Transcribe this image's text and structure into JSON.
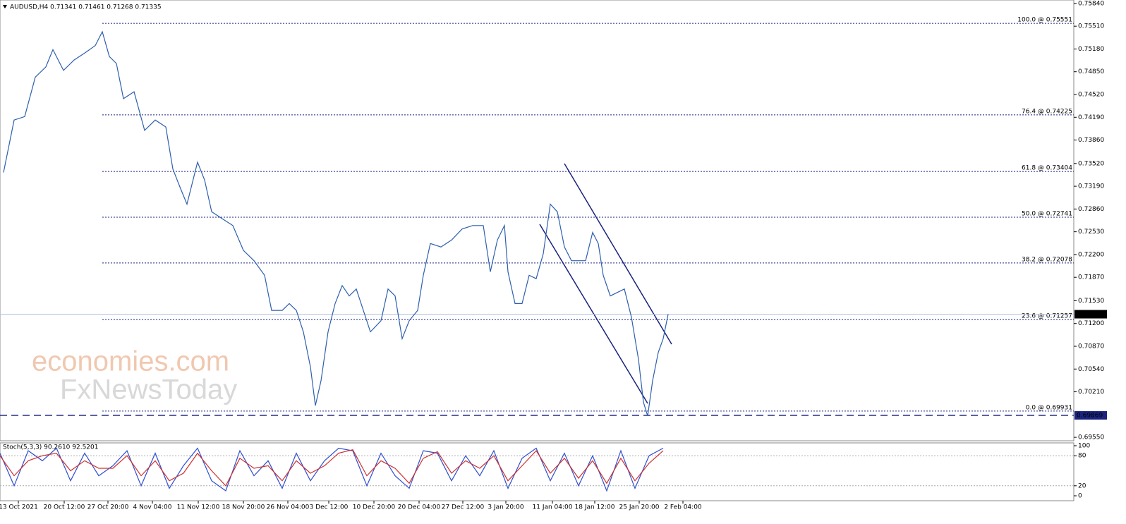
{
  "header": "AUDUSD,H4  0.71341 0.71461 0.71268 0.71335",
  "watermark": [
    "economies.com",
    "FxNewsToday"
  ],
  "chart_data": [
    {
      "type": "line",
      "xlim": [
        0,
        304.4
      ],
      "xticks": [
        {
          "value": 5.2,
          "label": "13 Oct 2021"
        },
        {
          "value": 18.2,
          "label": "20 Oct 12:00"
        },
        {
          "value": 30.6,
          "label": "27 Oct 20:00"
        },
        {
          "value": 43.2,
          "label": "4 Nov 04:00"
        },
        {
          "value": 56.2,
          "label": "11 Nov 12:00"
        },
        {
          "value": 69,
          "label": "18 Nov 20:00"
        },
        {
          "value": 81.6,
          "label": "26 Nov 04:00"
        },
        {
          "value": 93.2,
          "label": "3 Dec 12:00"
        },
        {
          "value": 106,
          "label": "10 Dec 20:00"
        },
        {
          "value": 118.8,
          "label": "20 Dec 04:00"
        },
        {
          "value": 131.2,
          "label": "27 Dec 12:00"
        },
        {
          "value": 143.4,
          "label": "3 Jan 20:00"
        },
        {
          "value": 156.6,
          "label": "11 Jan 04:00"
        },
        {
          "value": 168.6,
          "label": "18 Jan 12:00"
        },
        {
          "value": 181.2,
          "label": "25 Jan 20:00"
        },
        {
          "value": 193.6,
          "label": "2 Feb 04:00"
        }
      ],
      "ylim": [
        0.695,
        0.7589
      ],
      "yticks": [
        {
          "value": 0.7584,
          "label": "0.75840"
        },
        {
          "value": 0.7551,
          "label": "0.75510"
        },
        {
          "value": 0.7518,
          "label": "0.75180"
        },
        {
          "value": 0.7485,
          "label": "0.74850"
        },
        {
          "value": 0.7452,
          "label": "0.74520"
        },
        {
          "value": 0.7419,
          "label": "0.74190"
        },
        {
          "value": 0.7386,
          "label": "0.73860"
        },
        {
          "value": 0.7352,
          "label": "0.73520"
        },
        {
          "value": 0.7319,
          "label": "0.73190"
        },
        {
          "value": 0.7286,
          "label": "0.72860"
        },
        {
          "value": 0.7253,
          "label": "0.72530"
        },
        {
          "value": 0.722,
          "label": "0.72200"
        },
        {
          "value": 0.7187,
          "label": "0.71870"
        },
        {
          "value": 0.7153,
          "label": "0.71530"
        },
        {
          "value": 0.712,
          "label": "0.71200"
        },
        {
          "value": 0.7087,
          "label": "0.70870"
        },
        {
          "value": 0.7054,
          "label": "0.70540"
        },
        {
          "value": 0.7021,
          "label": "0.70210"
        },
        {
          "value": 0.6955,
          "label": "0.69550"
        }
      ],
      "levels": [
        {
          "value": 0.75551,
          "label": "100.0 @ 0.75551"
        },
        {
          "value": 0.74225,
          "label": "76.4 @ 0.74225"
        },
        {
          "value": 0.73404,
          "label": "61.8 @ 0.73404"
        },
        {
          "value": 0.72741,
          "label": "50.0 @ 0.72741"
        },
        {
          "value": 0.72078,
          "label": "38.2 @ 0.72078"
        },
        {
          "value": 0.71257,
          "label": "23.6 @ 0.71257"
        },
        {
          "value": 0.69931,
          "label": "0.0 @ 0.69931"
        }
      ],
      "price_labels": [
        {
          "value": 0.71335,
          "label": "0.71335"
        },
        {
          "value": 0.69869,
          "label": "0.69869"
        }
      ],
      "series": [
        {
          "color": "#2e5fae",
          "x": [
            1,
            4,
            7,
            10,
            13,
            15,
            18,
            21,
            24,
            27,
            29,
            31,
            33,
            35,
            38,
            41,
            44,
            47,
            49,
            51,
            53,
            56,
            58,
            60,
            63,
            66,
            69,
            72,
            75,
            77,
            80,
            82,
            84,
            86,
            88,
            89.4,
            91,
            93,
            95,
            97,
            99,
            101,
            103,
            105,
            108,
            110,
            112,
            114,
            116,
            118.4,
            120,
            122,
            125,
            128,
            131,
            134,
            137,
            139,
            141,
            143,
            144,
            146,
            148,
            150,
            152,
            154,
            156,
            158,
            160,
            162,
            164,
            166,
            168,
            169.6,
            171,
            173,
            175,
            177,
            179,
            181,
            182.4,
            183.6,
            185,
            186.6,
            188,
            189.4
          ],
          "values": [
            0.7339,
            0.7415,
            0.742,
            0.7477,
            0.7492,
            0.7517,
            0.7487,
            0.7502,
            0.7512,
            0.7523,
            0.7543,
            0.7507,
            0.7497,
            0.7446,
            0.7456,
            0.74,
            0.7415,
            0.7405,
            0.7344,
            0.7318,
            0.7293,
            0.7354,
            0.7328,
            0.7282,
            0.7272,
            0.7262,
            0.7226,
            0.7211,
            0.719,
            0.7139,
            0.7139,
            0.7149,
            0.7139,
            0.7108,
            0.7057,
            0.7001,
            0.7037,
            0.7108,
            0.7149,
            0.7175,
            0.716,
            0.717,
            0.7139,
            0.7108,
            0.7124,
            0.717,
            0.716,
            0.7098,
            0.7124,
            0.7139,
            0.719,
            0.7236,
            0.7231,
            0.7241,
            0.7257,
            0.7262,
            0.7262,
            0.7195,
            0.7241,
            0.7262,
            0.7195,
            0.7149,
            0.7149,
            0.719,
            0.7185,
            0.7221,
            0.7293,
            0.7282,
            0.7231,
            0.7211,
            0.7211,
            0.7211,
            0.7252,
            0.7236,
            0.719,
            0.716,
            0.7165,
            0.717,
            0.7129,
            0.7068,
            0.7006,
            0.6986,
            0.7037,
            0.7078,
            0.7098,
            0.71335
          ]
        }
      ]
    },
    {
      "type": "line",
      "title": "Stoch(5,3,3) 90.2610 92.5201",
      "xlim": [
        0,
        304.4
      ],
      "ylim": [
        0,
        100
      ],
      "yticks": [
        100,
        80,
        20,
        0
      ],
      "series": [
        {
          "color": "#2f4fd0",
          "x": [
            0,
            4,
            8,
            12,
            16,
            20,
            24,
            28,
            32,
            36,
            40,
            44,
            48,
            52,
            56,
            60,
            64,
            68,
            72,
            76,
            80,
            84,
            88,
            92,
            96,
            100,
            104,
            108,
            112,
            116,
            120,
            124,
            128,
            132,
            136,
            140,
            144,
            148,
            152,
            156,
            160,
            164,
            168,
            172,
            176,
            180,
            184,
            188
          ],
          "values": [
            85,
            20,
            90,
            70,
            95,
            30,
            85,
            40,
            60,
            90,
            20,
            85,
            15,
            60,
            95,
            30,
            10,
            90,
            40,
            70,
            15,
            85,
            30,
            70,
            95,
            90,
            20,
            85,
            40,
            15,
            90,
            85,
            30,
            80,
            40,
            90,
            15,
            75,
            95,
            30,
            85,
            20,
            80,
            10,
            90,
            15,
            80,
            95
          ]
        },
        {
          "color": "#d03030",
          "x": [
            0,
            4,
            8,
            12,
            16,
            20,
            24,
            28,
            32,
            36,
            40,
            44,
            48,
            52,
            56,
            60,
            64,
            68,
            72,
            76,
            80,
            84,
            88,
            92,
            96,
            100,
            104,
            108,
            112,
            116,
            120,
            124,
            128,
            132,
            136,
            140,
            144,
            148,
            152,
            156,
            160,
            164,
            168,
            172,
            176,
            180,
            184,
            188
          ],
          "values": [
            80,
            40,
            70,
            80,
            85,
            50,
            70,
            55,
            55,
            80,
            40,
            70,
            30,
            45,
            85,
            50,
            20,
            75,
            55,
            60,
            30,
            70,
            45,
            60,
            85,
            92,
            40,
            70,
            55,
            25,
            75,
            88,
            45,
            70,
            55,
            80,
            30,
            60,
            90,
            45,
            75,
            35,
            70,
            25,
            75,
            30,
            65,
            90
          ]
        }
      ]
    }
  ]
}
